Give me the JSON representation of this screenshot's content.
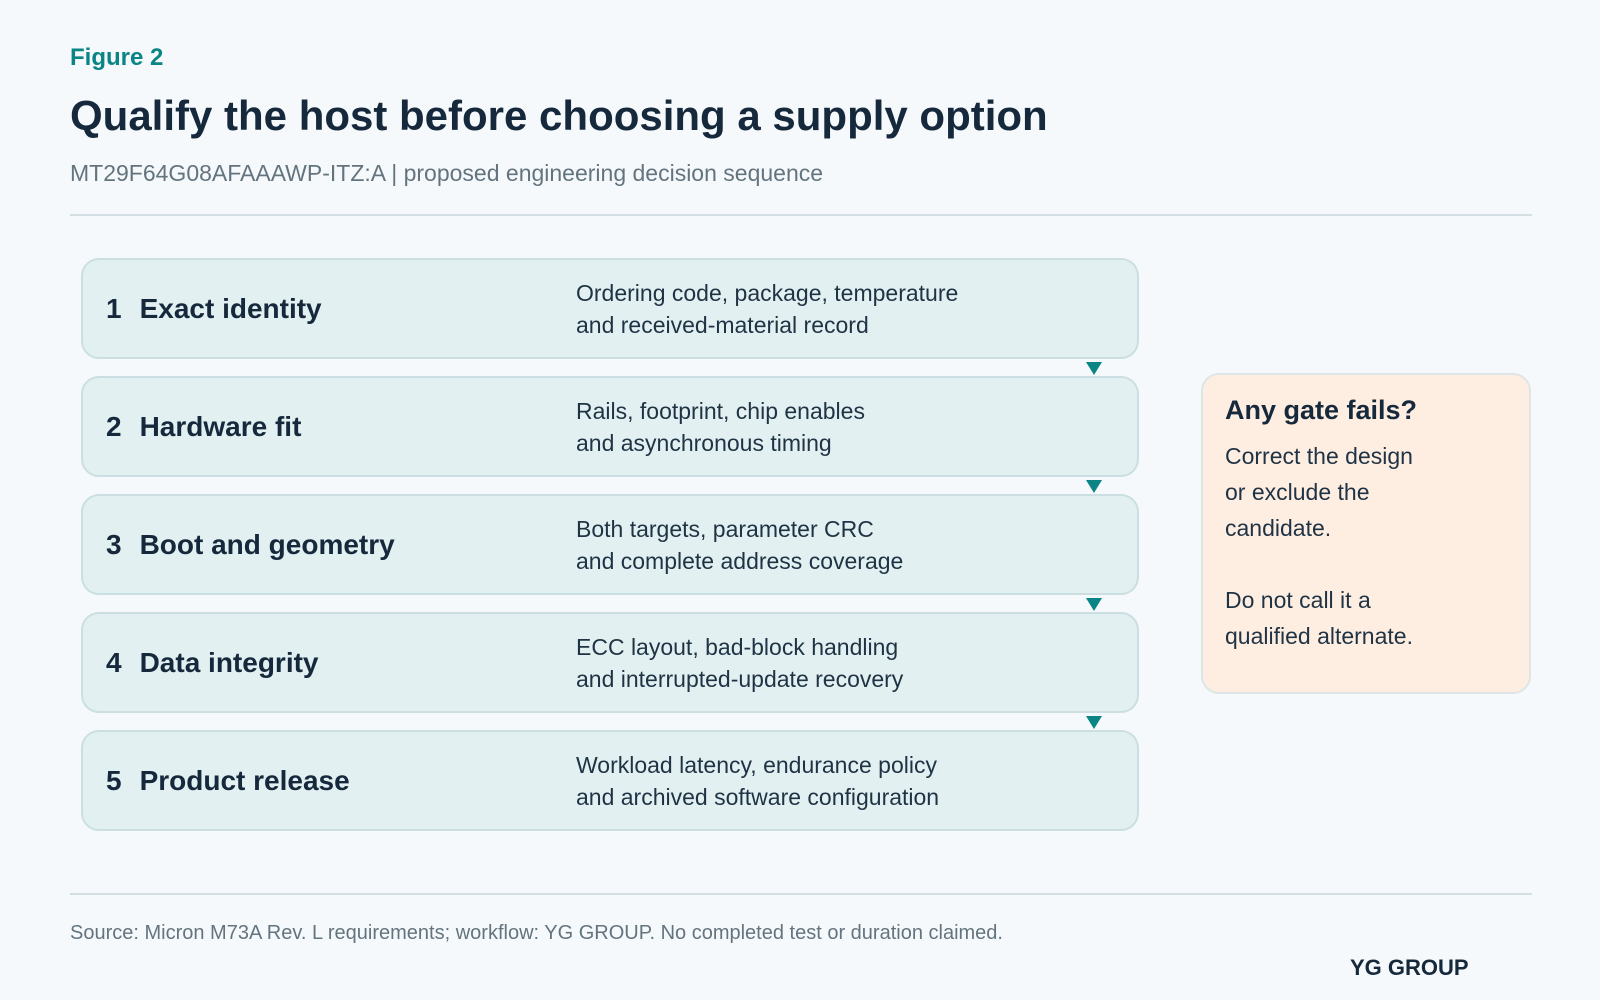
{
  "header": {
    "figure_label": "Figure 2",
    "title": "Qualify the host before choosing a supply option",
    "subtitle": "MT29F64G08AFAAAWP-ITZ:A | proposed engineering decision sequence"
  },
  "steps": [
    {
      "number": "1",
      "title": "Exact identity",
      "desc_line1": "Ordering code, package, temperature",
      "desc_line2": "and received-material record"
    },
    {
      "number": "2",
      "title": "Hardware fit",
      "desc_line1": "Rails, footprint, chip enables",
      "desc_line2": "and asynchronous timing"
    },
    {
      "number": "3",
      "title": "Boot and geometry",
      "desc_line1": "Both targets, parameter CRC",
      "desc_line2": "and complete address coverage"
    },
    {
      "number": "4",
      "title": "Data integrity",
      "desc_line1": "ECC layout, bad-block handling",
      "desc_line2": "and interrupted-update recovery"
    },
    {
      "number": "5",
      "title": "Product release",
      "desc_line1": "Workload latency, endurance policy",
      "desc_line2": "and archived software configuration"
    }
  ],
  "fail_box": {
    "title": "Any gate fails?",
    "lines_a": [
      "Correct the design",
      "or exclude the",
      "candidate."
    ],
    "lines_b": [
      "Do not call it a",
      "qualified alternate."
    ]
  },
  "footer": {
    "source": "Source: Micron M73A Rev. L requirements; workflow: YG GROUP. No completed test or duration claimed.",
    "brand": "YG GROUP"
  },
  "colors": {
    "accent": "#0b8485",
    "step_fill": "#e2f0f1",
    "alert_fill": "#feeee2",
    "text_dark": "#16293c"
  }
}
